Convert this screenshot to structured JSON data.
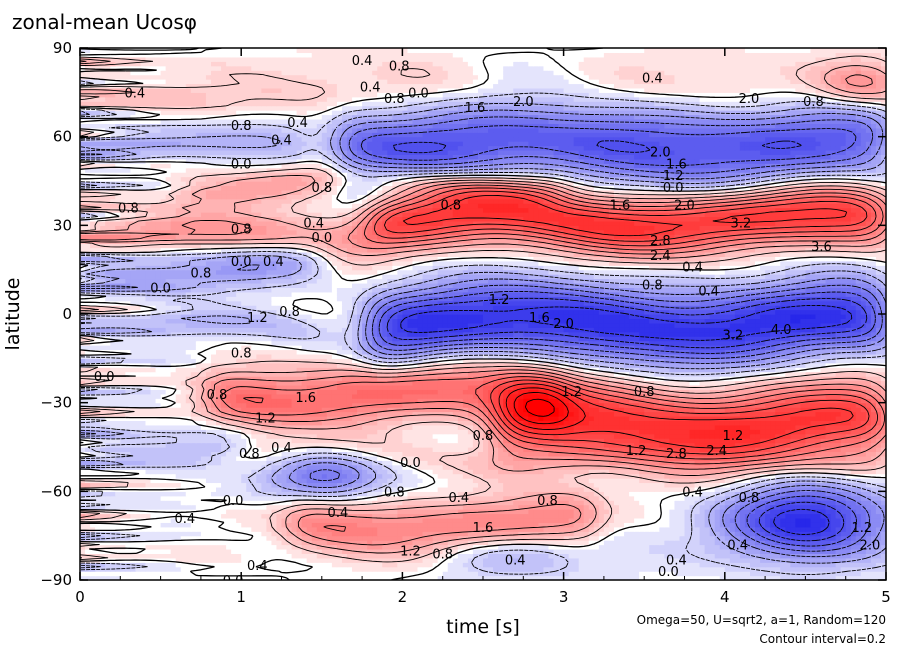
{
  "chart_data": {
    "type": "heatmap",
    "subtype": "filled-contour",
    "title": "zonal-mean Ucosφ",
    "xlabel": "time [s]",
    "ylabel": "latitude",
    "xlim": [
      0,
      5
    ],
    "ylim": [
      -90,
      90
    ],
    "x_ticks": [
      0,
      1,
      2,
      3,
      4,
      5
    ],
    "y_ticks": [
      90,
      60,
      30,
      0,
      -30,
      -60,
      -90
    ],
    "x_tick_labels": [
      "0",
      "1",
      "2",
      "3",
      "4",
      "5"
    ],
    "y_tick_labels": [
      "90",
      "60",
      "30",
      "0",
      "−30",
      "−60",
      "−90"
    ],
    "colormap": {
      "negative": "#0000e6",
      "zero": "#ffffff",
      "positive": "#ff0000",
      "range": [
        -4.0,
        4.0
      ]
    },
    "contour_interval": 0.2,
    "negative_contours": "dashed",
    "notes": [
      "Omega=50, U=sqrt2, a=1, Random=120",
      "Contour interval=0.2"
    ],
    "features": [
      {
        "type": "band",
        "t0": 0.0,
        "t1": 5.0,
        "lat": 74,
        "value": 0.5,
        "width": 8
      },
      {
        "type": "band",
        "t0": 1.6,
        "t1": 5.0,
        "lat": 58,
        "value": -2.4,
        "width": 10
      },
      {
        "type": "band",
        "t0": 0.0,
        "t1": 1.4,
        "lat": 58,
        "value": -1.0,
        "width": 5
      },
      {
        "type": "band",
        "t0": 0.6,
        "t1": 3.0,
        "lat": 44,
        "value": 1.0,
        "width": 4
      },
      {
        "type": "band",
        "t0": 1.8,
        "t1": 5.0,
        "lat": 32,
        "value": 3.0,
        "width": 7
      },
      {
        "type": "band",
        "t0": 0.0,
        "t1": 1.8,
        "lat": 27,
        "value": 1.2,
        "width": 5
      },
      {
        "type": "band",
        "t0": 0.0,
        "t1": 1.5,
        "lat": 16,
        "value": -1.2,
        "width": 5
      },
      {
        "type": "band",
        "t0": 1.8,
        "t1": 5.0,
        "lat": -3,
        "value": -3.0,
        "width": 9
      },
      {
        "type": "band",
        "t0": 0.0,
        "t1": 1.5,
        "lat": -5,
        "value": -0.7,
        "width": 4
      },
      {
        "type": "band",
        "t0": 0.8,
        "t1": 3.0,
        "lat": -27,
        "value": 2.0,
        "width": 7
      },
      {
        "type": "band",
        "t0": 2.6,
        "t1": 5.0,
        "lat": -37,
        "value": 3.0,
        "width": 9
      },
      {
        "type": "band",
        "t0": 0.0,
        "t1": 1.0,
        "lat": -45,
        "value": -1.0,
        "width": 5
      },
      {
        "type": "band",
        "t0": 0.0,
        "t1": 5.0,
        "lat": -48,
        "value": 0.4,
        "width": 4
      },
      {
        "type": "band",
        "t0": 1.3,
        "t1": 3.2,
        "lat": -72,
        "value": 1.8,
        "width": 7
      },
      {
        "type": "blob",
        "t": 4.5,
        "lat": -70,
        "value": -3.2,
        "st": 0.35,
        "sl": 9
      },
      {
        "type": "blob",
        "t": 1.5,
        "lat": -55,
        "value": -2.0,
        "st": 0.25,
        "sl": 6
      },
      {
        "type": "blob",
        "t": 4.85,
        "lat": 78,
        "value": 1.4,
        "st": 0.2,
        "sl": 6
      },
      {
        "type": "blob",
        "t": 2.6,
        "lat": -80,
        "value": -1.2,
        "st": 0.5,
        "sl": 6
      }
    ],
    "contour_labels": [
      {
        "t": 0.34,
        "lat": 75,
        "text": "0.4"
      },
      {
        "t": 1.75,
        "lat": 86,
        "text": "0.4"
      },
      {
        "t": 1.98,
        "lat": 84,
        "text": "0.8"
      },
      {
        "t": 1.8,
        "lat": 77,
        "text": "0.4"
      },
      {
        "t": 2.1,
        "lat": 75,
        "text": "0.0"
      },
      {
        "t": 1.95,
        "lat": 73,
        "text": "0.8"
      },
      {
        "t": 2.45,
        "lat": 70,
        "text": "1.6"
      },
      {
        "t": 2.75,
        "lat": 72,
        "text": "2.0"
      },
      {
        "t": 3.55,
        "lat": 80,
        "text": "0.4"
      },
      {
        "t": 4.15,
        "lat": 73,
        "text": "2.0"
      },
      {
        "t": 4.55,
        "lat": 72,
        "text": "0.8"
      },
      {
        "t": 1.0,
        "lat": 64,
        "text": "0.8"
      },
      {
        "t": 1.35,
        "lat": 65,
        "text": "0.4"
      },
      {
        "t": 1.25,
        "lat": 59,
        "text": "0.4"
      },
      {
        "t": 1.0,
        "lat": 51,
        "text": "0.0"
      },
      {
        "t": 3.6,
        "lat": 55,
        "text": "2.0"
      },
      {
        "t": 3.7,
        "lat": 51,
        "text": "1.6"
      },
      {
        "t": 3.68,
        "lat": 47,
        "text": "1.2"
      },
      {
        "t": 3.68,
        "lat": 43,
        "text": "0.0"
      },
      {
        "t": 1.5,
        "lat": 43,
        "text": "0.8"
      },
      {
        "t": 2.3,
        "lat": 37,
        "text": "0.8"
      },
      {
        "t": 3.35,
        "lat": 37,
        "text": "1.6"
      },
      {
        "t": 3.75,
        "lat": 37,
        "text": "2.0"
      },
      {
        "t": 0.3,
        "lat": 36,
        "text": "0.8"
      },
      {
        "t": 1.45,
        "lat": 31,
        "text": "0.4"
      },
      {
        "t": 1.0,
        "lat": 29,
        "text": "0.8"
      },
      {
        "t": 1.5,
        "lat": 26,
        "text": "0.0"
      },
      {
        "t": 4.1,
        "lat": 31,
        "text": "3.2"
      },
      {
        "t": 3.6,
        "lat": 25,
        "text": "2.8"
      },
      {
        "t": 3.6,
        "lat": 20,
        "text": "2.4"
      },
      {
        "t": 4.6,
        "lat": 23,
        "text": "3.6"
      },
      {
        "t": 1.0,
        "lat": 18,
        "text": "0.0"
      },
      {
        "t": 1.2,
        "lat": 18,
        "text": "0.4"
      },
      {
        "t": 3.8,
        "lat": 16,
        "text": "0.4"
      },
      {
        "t": 0.75,
        "lat": 14,
        "text": "0.8"
      },
      {
        "t": 0.5,
        "lat": 9,
        "text": "0.0"
      },
      {
        "t": 3.55,
        "lat": 10,
        "text": "0.8"
      },
      {
        "t": 3.9,
        "lat": 8,
        "text": "0.4"
      },
      {
        "t": 2.6,
        "lat": 5,
        "text": "1.2"
      },
      {
        "t": 2.85,
        "lat": -1,
        "text": "1.6"
      },
      {
        "t": 3.0,
        "lat": -3,
        "text": "2.0"
      },
      {
        "t": 1.3,
        "lat": 1,
        "text": "0.8"
      },
      {
        "t": 1.1,
        "lat": -1,
        "text": "1.2"
      },
      {
        "t": 4.35,
        "lat": -5,
        "text": "4.0"
      },
      {
        "t": 4.05,
        "lat": -7,
        "text": "3.2"
      },
      {
        "t": 1.0,
        "lat": -13,
        "text": "0.8"
      },
      {
        "t": 0.15,
        "lat": -21,
        "text": "0.0"
      },
      {
        "t": 0.85,
        "lat": -27,
        "text": "0.8"
      },
      {
        "t": 1.4,
        "lat": -28,
        "text": "1.6"
      },
      {
        "t": 3.05,
        "lat": -26,
        "text": "1.2"
      },
      {
        "t": 3.5,
        "lat": -26,
        "text": "0.8"
      },
      {
        "t": 1.15,
        "lat": -35,
        "text": "1.2"
      },
      {
        "t": 2.5,
        "lat": -41,
        "text": "0.8"
      },
      {
        "t": 1.05,
        "lat": -47,
        "text": "0.8"
      },
      {
        "t": 1.25,
        "lat": -45,
        "text": "0.4"
      },
      {
        "t": 2.05,
        "lat": -50,
        "text": "0.0"
      },
      {
        "t": 3.7,
        "lat": -47,
        "text": "2.8"
      },
      {
        "t": 3.95,
        "lat": -46,
        "text": "2.4"
      },
      {
        "t": 4.05,
        "lat": -41,
        "text": "1.2"
      },
      {
        "t": 4.15,
        "lat": -62,
        "text": "0.8"
      },
      {
        "t": 3.8,
        "lat": -60,
        "text": "0.4"
      },
      {
        "t": 3.45,
        "lat": -46,
        "text": "1.2"
      },
      {
        "t": 1.95,
        "lat": -60,
        "text": "0.8"
      },
      {
        "t": 2.35,
        "lat": -62,
        "text": "0.4"
      },
      {
        "t": 2.9,
        "lat": -63,
        "text": "0.8"
      },
      {
        "t": 0.95,
        "lat": -63,
        "text": "0.0"
      },
      {
        "t": 1.6,
        "lat": -67,
        "text": "0.4"
      },
      {
        "t": 0.65,
        "lat": -69,
        "text": "0.4"
      },
      {
        "t": 2.5,
        "lat": -72,
        "text": "1.6"
      },
      {
        "t": 2.05,
        "lat": -80,
        "text": "1.2"
      },
      {
        "t": 2.25,
        "lat": -81,
        "text": "0.8"
      },
      {
        "t": 2.7,
        "lat": -83,
        "text": "0.4"
      },
      {
        "t": 3.7,
        "lat": -83,
        "text": "0.4"
      },
      {
        "t": 3.65,
        "lat": -87,
        "text": "0.0"
      },
      {
        "t": 4.08,
        "lat": -78,
        "text": "0.4"
      },
      {
        "t": 4.85,
        "lat": -72,
        "text": "1.2"
      },
      {
        "t": 4.9,
        "lat": -78,
        "text": "2.0"
      },
      {
        "t": 1.1,
        "lat": -85,
        "text": "0.4"
      },
      {
        "t": 0.95,
        "lat": -90,
        "text": "0.0"
      }
    ]
  }
}
